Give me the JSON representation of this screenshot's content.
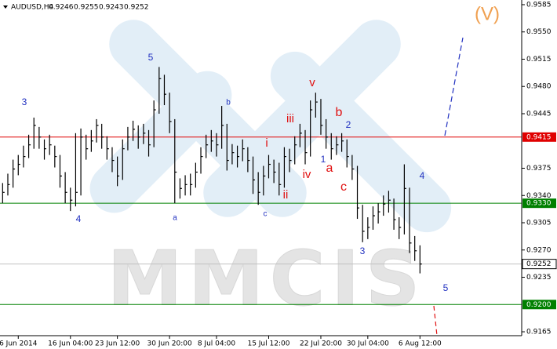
{
  "chart_data": {
    "type": "ohlc",
    "symbol": "AUDUSD,H4",
    "header_prices": [
      0.9246,
      0.9255,
      0.9243,
      0.9252
    ],
    "categories": [
      null,
      null,
      null,
      "6 Jun 2014",
      null,
      null,
      null,
      null,
      null,
      null,
      null,
      null,
      null,
      "16 Jun 04:00",
      null,
      null,
      null,
      null,
      null,
      null,
      null,
      null,
      "23 Jun 12:00",
      null,
      null,
      null,
      null,
      null,
      null,
      null,
      null,
      null,
      "30 Jun 20:00",
      null,
      null,
      null,
      null,
      null,
      null,
      null,
      null,
      "8 Jul 04:00",
      null,
      null,
      null,
      null,
      null,
      null,
      null,
      null,
      null,
      "15 Jul 12:00",
      null,
      null,
      null,
      null,
      null,
      null,
      null,
      null,
      null,
      "22 Jul 20:00",
      null,
      null,
      null,
      null,
      null,
      null,
      null,
      null,
      "30 Jul 04:00",
      null,
      null,
      null,
      null,
      null,
      null,
      null,
      null,
      null,
      "6 Aug 12:00"
    ],
    "high": [
      0.9356,
      0.9368,
      0.9386,
      0.9392,
      0.9404,
      0.9418,
      0.944,
      0.9428,
      0.9412,
      0.9418,
      0.9404,
      0.9392,
      0.937,
      0.935,
      0.942,
      0.9426,
      0.9418,
      0.9424,
      0.9438,
      0.9432,
      0.9416,
      0.9402,
      0.939,
      0.9412,
      0.9428,
      0.9436,
      0.943,
      0.9432,
      0.9424,
      0.9462,
      0.9505,
      0.9495,
      0.9472,
      0.9438,
      0.9362,
      0.9366,
      0.9368,
      0.9382,
      0.9402,
      0.9418,
      0.9424,
      0.942,
      0.9455,
      0.9432,
      0.9406,
      0.9404,
      0.9412,
      0.9402,
      0.939,
      0.937,
      0.9378,
      0.9392,
      0.9386,
      0.9382,
      0.9402,
      0.94,
      0.9416,
      0.9432,
      0.9424,
      0.9462,
      0.9472,
      0.9464,
      0.9438,
      0.942,
      0.9416,
      0.942,
      0.9412,
      0.9392,
      0.9378,
      0.9328,
      0.9312,
      0.9326,
      0.933,
      0.934,
      0.9346,
      0.9336,
      0.9312,
      0.938,
      0.935,
      0.9288,
      0.9276
    ],
    "low": [
      0.933,
      0.934,
      0.935,
      0.9366,
      0.9376,
      0.9388,
      0.94,
      0.94,
      0.9386,
      0.9392,
      0.9376,
      0.935,
      0.933,
      0.932,
      0.9326,
      0.934,
      0.9386,
      0.9396,
      0.9408,
      0.94,
      0.9386,
      0.937,
      0.9352,
      0.936,
      0.9398,
      0.941,
      0.94,
      0.9406,
      0.939,
      0.9402,
      0.9445,
      0.9456,
      0.942,
      0.933,
      0.9336,
      0.934,
      0.934,
      0.935,
      0.9368,
      0.9388,
      0.9396,
      0.939,
      0.94,
      0.9372,
      0.938,
      0.9376,
      0.9384,
      0.937,
      0.9342,
      0.9328,
      0.934,
      0.9362,
      0.9356,
      0.934,
      0.935,
      0.937,
      0.938,
      0.9402,
      0.938,
      0.939,
      0.944,
      0.9418,
      0.94,
      0.9386,
      0.9392,
      0.9396,
      0.9376,
      0.936,
      0.931,
      0.928,
      0.9284,
      0.9296,
      0.9304,
      0.9314,
      0.9318,
      0.9296,
      0.9284,
      0.929,
      0.9266,
      0.9256,
      0.924
    ],
    "close": [
      0.9344,
      0.9354,
      0.9374,
      0.938,
      0.939,
      0.9405,
      0.943,
      0.9415,
      0.94,
      0.9405,
      0.939,
      0.9365,
      0.9344,
      0.9334,
      0.9344,
      0.9415,
      0.94,
      0.941,
      0.943,
      0.9415,
      0.94,
      0.9385,
      0.9365,
      0.94,
      0.9415,
      0.9425,
      0.9415,
      0.942,
      0.9405,
      0.945,
      0.949,
      0.947,
      0.9435,
      0.937,
      0.9349,
      0.9354,
      0.9354,
      0.937,
      0.939,
      0.9405,
      0.941,
      0.9405,
      0.943,
      0.9385,
      0.9395,
      0.939,
      0.94,
      0.9385,
      0.936,
      0.9344,
      0.9365,
      0.938,
      0.937,
      0.9354,
      0.939,
      0.9385,
      0.9405,
      0.942,
      0.9395,
      0.945,
      0.946,
      0.943,
      0.9415,
      0.94,
      0.9405,
      0.941,
      0.939,
      0.9374,
      0.9324,
      0.9294,
      0.9299,
      0.9314,
      0.9319,
      0.9329,
      0.9334,
      0.9309,
      0.9299,
      0.9349,
      0.9279,
      0.9269,
      0.9252
    ],
    "color": "#000000",
    "ylim": [
      0.916,
      0.9591
    ],
    "yticks": [
      0.9585,
      {
        "value": 0.955,
        "label": "0.9550"
      },
      0.9515,
      {
        "value": 0.948,
        "label": "0.9480"
      },
      0.9445,
      0.9375,
      {
        "value": 0.934,
        "label": "0.9340"
      },
      0.9305,
      {
        "value": 0.927,
        "label": "0.9270"
      },
      0.9235,
      0.9165
    ],
    "levels": [
      {
        "value": 0.9415,
        "color": "#e00000"
      },
      {
        "value": 0.933,
        "label": "0.9330",
        "color": "#008000"
      },
      {
        "value": 0.9252,
        "color": "#c0c0c0"
      },
      {
        "value": 0.92,
        "label": "0.9200",
        "color": "#008000"
      }
    ],
    "annotations": [
      "5",
      "3",
      "4",
      "a",
      "b",
      "c",
      "i",
      "ii",
      "iii",
      "iv",
      "v",
      "1",
      "2",
      "b",
      "a",
      "c",
      "3",
      "4",
      "5",
      "(V)"
    ],
    "watermark": "MMCIS"
  }
}
